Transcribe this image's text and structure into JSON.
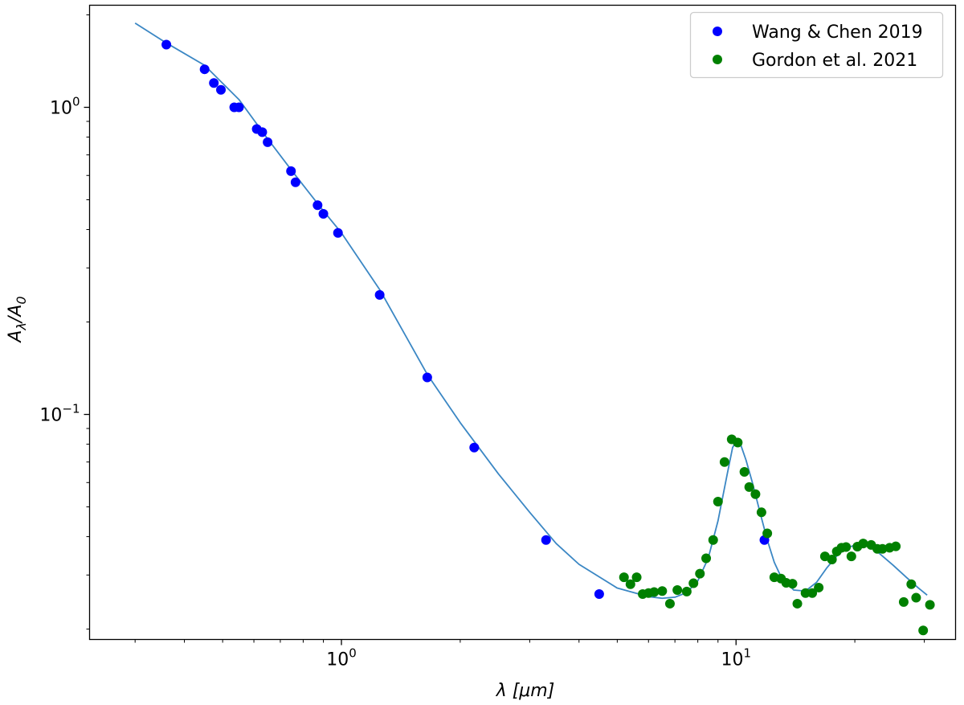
{
  "chart_data": {
    "type": "scatter",
    "x_scale": "log",
    "y_scale": "log",
    "xlim": [
      0.23,
      36
    ],
    "ylim": [
      0.0185,
      2.15
    ],
    "xlabel": "λ [μm]",
    "ylabel": "A_λ/A_0",
    "x_ticks": [
      {
        "value": 1,
        "base": "10",
        "exp": "0"
      },
      {
        "value": 10,
        "base": "10",
        "exp": "1"
      }
    ],
    "y_ticks": [
      {
        "value": 1,
        "base": "10",
        "exp": "0"
      },
      {
        "value": 0.1,
        "base": "10",
        "exp": "−1"
      }
    ],
    "grid": false,
    "legend_position": "top-right",
    "series": [
      {
        "name": "Wang & Chen 2019",
        "kind": "scatter",
        "color": "#0000ff",
        "points": [
          [
            0.36,
            1.6
          ],
          [
            0.45,
            1.33
          ],
          [
            0.475,
            1.2
          ],
          [
            0.495,
            1.14
          ],
          [
            0.535,
            1.0
          ],
          [
            0.55,
            1.0
          ],
          [
            0.61,
            0.85
          ],
          [
            0.63,
            0.83
          ],
          [
            0.65,
            0.77
          ],
          [
            0.745,
            0.62
          ],
          [
            0.765,
            0.57
          ],
          [
            0.87,
            0.48
          ],
          [
            0.9,
            0.45
          ],
          [
            0.98,
            0.39
          ],
          [
            1.25,
            0.245
          ],
          [
            1.65,
            0.132
          ],
          [
            2.17,
            0.078
          ],
          [
            3.3,
            0.039
          ],
          [
            4.5,
            0.026
          ],
          [
            11.8,
            0.039
          ]
        ]
      },
      {
        "name": "Gordon et al. 2021",
        "kind": "scatter",
        "color": "#008000",
        "points": [
          [
            5.2,
            0.0295
          ],
          [
            5.4,
            0.028
          ],
          [
            5.6,
            0.0295
          ],
          [
            5.8,
            0.026
          ],
          [
            6.0,
            0.0262
          ],
          [
            6.2,
            0.0264
          ],
          [
            6.5,
            0.0266
          ],
          [
            6.8,
            0.0242
          ],
          [
            7.1,
            0.0268
          ],
          [
            7.5,
            0.0265
          ],
          [
            7.8,
            0.0282
          ],
          [
            8.1,
            0.0303
          ],
          [
            8.4,
            0.034
          ],
          [
            8.75,
            0.039
          ],
          [
            9.0,
            0.052
          ],
          [
            9.35,
            0.07
          ],
          [
            9.75,
            0.083
          ],
          [
            10.1,
            0.081
          ],
          [
            10.5,
            0.065
          ],
          [
            10.8,
            0.058
          ],
          [
            11.2,
            0.055
          ],
          [
            11.6,
            0.048
          ],
          [
            12.0,
            0.041
          ],
          [
            12.5,
            0.0295
          ],
          [
            13.0,
            0.0292
          ],
          [
            13.4,
            0.0283
          ],
          [
            13.9,
            0.0281
          ],
          [
            14.3,
            0.0242
          ],
          [
            15.0,
            0.0262
          ],
          [
            15.6,
            0.0262
          ],
          [
            16.2,
            0.0273
          ],
          [
            16.8,
            0.0345
          ],
          [
            17.5,
            0.0337
          ],
          [
            18.0,
            0.0358
          ],
          [
            18.5,
            0.0368
          ],
          [
            19.0,
            0.037
          ],
          [
            19.6,
            0.0345
          ],
          [
            20.3,
            0.0371
          ],
          [
            21.0,
            0.038
          ],
          [
            22.0,
            0.0376
          ],
          [
            22.8,
            0.0365
          ],
          [
            23.5,
            0.0365
          ],
          [
            24.5,
            0.0368
          ],
          [
            25.4,
            0.0372
          ],
          [
            26.6,
            0.0245
          ],
          [
            27.8,
            0.028
          ],
          [
            28.6,
            0.0253
          ],
          [
            29.8,
            0.0198
          ],
          [
            31.0,
            0.024
          ]
        ]
      },
      {
        "name": "",
        "kind": "line",
        "color": "#3b87c4",
        "points": [
          [
            0.3,
            1.88
          ],
          [
            0.36,
            1.62
          ],
          [
            0.45,
            1.37
          ],
          [
            0.55,
            1.06
          ],
          [
            0.65,
            0.79
          ],
          [
            0.75,
            0.62
          ],
          [
            0.9,
            0.46
          ],
          [
            1.0,
            0.39
          ],
          [
            1.25,
            0.255
          ],
          [
            1.5,
            0.168
          ],
          [
            1.65,
            0.135
          ],
          [
            2.0,
            0.094
          ],
          [
            2.5,
            0.064
          ],
          [
            3.0,
            0.048
          ],
          [
            3.5,
            0.038
          ],
          [
            4.0,
            0.0325
          ],
          [
            5.0,
            0.0272
          ],
          [
            6.0,
            0.0255
          ],
          [
            6.5,
            0.0252
          ],
          [
            7.0,
            0.0254
          ],
          [
            7.5,
            0.0263
          ],
          [
            8.0,
            0.0287
          ],
          [
            8.5,
            0.034
          ],
          [
            9.0,
            0.045
          ],
          [
            9.5,
            0.064
          ],
          [
            9.8,
            0.078
          ],
          [
            10.0,
            0.0815
          ],
          [
            10.3,
            0.079
          ],
          [
            10.6,
            0.071
          ],
          [
            11.0,
            0.06
          ],
          [
            11.5,
            0.048
          ],
          [
            12.0,
            0.039
          ],
          [
            12.5,
            0.033
          ],
          [
            13.0,
            0.0296
          ],
          [
            14.0,
            0.0268
          ],
          [
            15.0,
            0.0266
          ],
          [
            16.0,
            0.0284
          ],
          [
            17.0,
            0.0317
          ],
          [
            18.0,
            0.0346
          ],
          [
            19.0,
            0.0367
          ],
          [
            20.0,
            0.0375
          ],
          [
            21.0,
            0.0376
          ],
          [
            22.0,
            0.0369
          ],
          [
            23.0,
            0.0354
          ],
          [
            25.0,
            0.0323
          ],
          [
            27.0,
            0.0295
          ],
          [
            29.0,
            0.0272
          ],
          [
            30.5,
            0.0258
          ]
        ]
      }
    ]
  }
}
